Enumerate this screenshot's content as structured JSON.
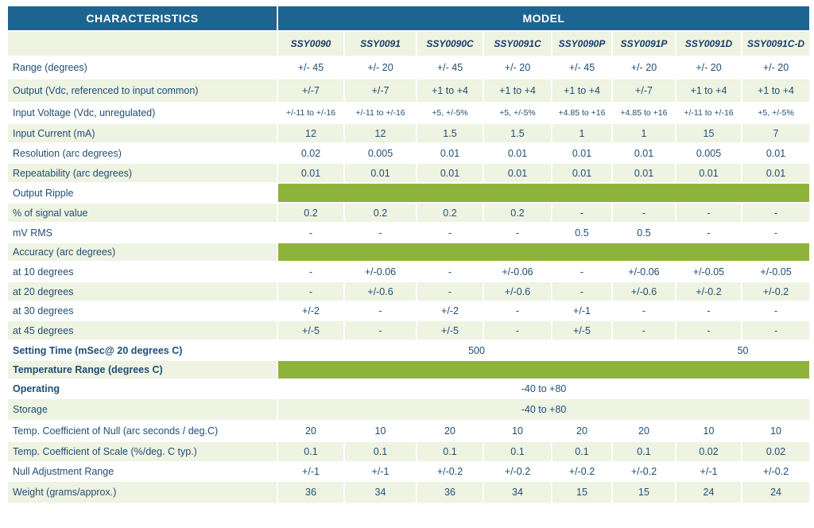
{
  "table": {
    "header": [
      "CHARACTERISTICS",
      "MODEL"
    ],
    "models": [
      "SSY0090",
      "SSY0091",
      "SSY0090C",
      "SSY0091C",
      "SSY0090P",
      "SSY0091P",
      "SSY0091D",
      "SSY0091C-D"
    ],
    "rows": [
      {
        "label": "Range (degrees)",
        "cells": [
          "+/- 45",
          "+/- 20",
          "+/- 45",
          "+/- 20",
          "+/- 45",
          "+/- 20",
          "+/- 20",
          "+/- 20"
        ]
      },
      {
        "label": "Output (Vdc, referenced to input common)",
        "cells": [
          "+/-7",
          "+/-7",
          "+1 to +4",
          "+1 to +4",
          "+1 to +4",
          "+/-7",
          "+1 to +4",
          "+1 to +4"
        ]
      },
      {
        "label": "Input Voltage (Vdc, unregulated)",
        "cells": [
          "+/-11 to +/-16",
          "+/-11 to +/-16",
          "+5, +/-5%",
          "+5, +/-5%",
          "+4.85 to +16",
          "+4.85 to +16",
          "+/-11 to +/-16",
          "+5, +/-5%"
        ]
      },
      {
        "label": "Input Current (mA)",
        "cells": [
          "12",
          "12",
          "1.5",
          "1.5",
          "1",
          "1",
          "15",
          "7"
        ]
      },
      {
        "label": "Resolution (arc degrees)",
        "cells": [
          "0.02",
          "0.005",
          "0.01",
          "0.01",
          "0.01",
          "0.01",
          "0.005",
          "0.01"
        ]
      },
      {
        "label": "Repeatability (arc degrees)",
        "cells": [
          "0.01",
          "0.01",
          "0.01",
          "0.01",
          "0.01",
          "0.01",
          "0.01",
          "0.01"
        ]
      },
      {
        "label": "Output Ripple",
        "cells": []
      },
      {
        "label": "% of signal value",
        "cells": [
          "0.2",
          "0.2",
          "0.2",
          "0.2",
          "-",
          "-",
          "-",
          "-"
        ]
      },
      {
        "label": "mV RMS",
        "cells": [
          "-",
          "-",
          "-",
          "-",
          "0.5",
          "0.5",
          "-",
          "-"
        ]
      },
      {
        "label": "Accuracy (arc degrees)",
        "cells": []
      },
      {
        "label": "at 10 degrees",
        "cells": [
          "-",
          "+/-0.06",
          "-",
          "+/-0.06",
          "-",
          "+/-0.06",
          "+/-0.05",
          "+/-0.05"
        ]
      },
      {
        "label": "at 20 degrees",
        "cells": [
          "-",
          "+/-0.6",
          "-",
          "+/-0.6",
          "-",
          "+/-0.6",
          "+/-0.2",
          "+/-0.2"
        ]
      },
      {
        "label": "at 30 degrees",
        "cells": [
          "+/-2",
          "-",
          "+/-2",
          "-",
          "+/-1",
          "-",
          "-",
          "-"
        ]
      },
      {
        "label": "at 45 degrees",
        "cells": [
          "+/-5",
          "-",
          "+/-5",
          "-",
          "+/-5",
          "-",
          "-",
          "-"
        ]
      },
      {
        "label": "Setting Time (mSec@ 20 degrees C)",
        "cells": [
          "500",
          "50"
        ]
      },
      {
        "label": "Temperature Range (degrees C)",
        "cells": []
      },
      {
        "label": "Operating",
        "cells": [
          "-40 to +80"
        ]
      },
      {
        "label": "Storage",
        "cells": [
          "-40 to +80"
        ]
      },
      {
        "label": "Temp. Coefficient of Null (arc seconds / deg.C)",
        "cells": [
          "20",
          "10",
          "20",
          "10",
          "20",
          "20",
          "10",
          "10"
        ]
      },
      {
        "label": "Temp. Coefficient of Scale (%/deg. C typ.)",
        "cells": [
          "0.1",
          "0.1",
          "0.1",
          "0.1",
          "0.1",
          "0.1",
          "0.02",
          "0.02"
        ]
      },
      {
        "label": "Null Adjustment Range",
        "cells": [
          "+/-1",
          "+/-1",
          "+/-0.2",
          "+/-0.2",
          "+/-0.2",
          "+/-0.2",
          "+/-1",
          "+/-0.2"
        ]
      },
      {
        "label": "Weight (grams/approx.)",
        "cells": [
          "36",
          "34",
          "36",
          "34",
          "15",
          "15",
          "24",
          "24"
        ]
      }
    ]
  }
}
